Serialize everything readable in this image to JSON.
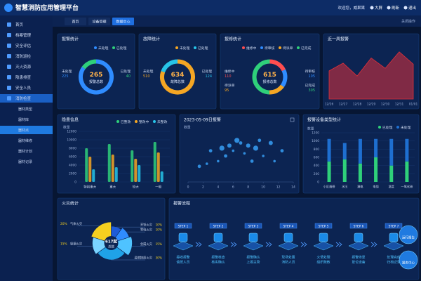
{
  "header": {
    "title": "智慧消防应用管理平台",
    "user": "欢迎您，威果果",
    "actions": [
      "大屏",
      "刷新",
      "退出"
    ]
  },
  "sidebar": {
    "items": [
      "首页",
      "档案管理",
      "安全评估",
      "消防巡检",
      "灭火资源",
      "隐患排查",
      "安全人员",
      "消防检查"
    ],
    "open_item": 7,
    "subitems": [
      "器材类型",
      "器材库",
      "器材点",
      "器材维修",
      "器材计划",
      "器材记录"
    ],
    "active_subitem": 2
  },
  "tabs": {
    "items": [
      "首页",
      "设备管理",
      "数据中心"
    ],
    "active": 2,
    "action": "关闭操作"
  },
  "panels": {
    "alarm": {
      "type": "ring",
      "title": "报警统计",
      "total": 265,
      "total_label": "报警总数",
      "series": [
        {
          "name": "未处理",
          "color": "#2f8cff",
          "value": 225
        },
        {
          "name": "已处理",
          "color": "#2fd07a",
          "value": 40
        }
      ]
    },
    "fault": {
      "type": "ring",
      "title": "故障统计",
      "total": 634,
      "total_label": "故障总数",
      "series": [
        {
          "name": "未处理",
          "color": "#f5a623",
          "value": 510
        },
        {
          "name": "已处理",
          "color": "#27c4e8",
          "value": 124
        }
      ]
    },
    "repair": {
      "type": "ring",
      "title": "报修统计",
      "total": 615,
      "total_label": "报修总数",
      "series": [
        {
          "name": "维修中",
          "color": "#ff4d4f",
          "value": 110
        },
        {
          "name": "待审核",
          "color": "#2f8cff",
          "value": 105
        },
        {
          "name": "待派单",
          "color": "#f5a623",
          "value": 95
        },
        {
          "name": "已完成",
          "color": "#2fd07a",
          "value": 305
        }
      ]
    },
    "weekly": {
      "type": "area",
      "title": "近一周报警",
      "color": "#e0303a",
      "categories": [
        "12/26",
        "12/27",
        "12/28",
        "12/29",
        "12/30",
        "12/31",
        "01/01"
      ],
      "values": [
        55,
        70,
        45,
        80,
        60,
        92,
        68
      ],
      "ylim": [
        0,
        100
      ]
    },
    "hazard": {
      "type": "grouped-bar",
      "title": "隐患信息",
      "y_label": "数量",
      "categories": [
        "特别重大",
        "重大",
        "较大",
        "一般"
      ],
      "series": [
        {
          "name": "已整改",
          "color": "#2fd07a",
          "values": [
            8000,
            9000,
            7500,
            9500
          ]
        },
        {
          "name": "整改中",
          "color": "#f5a623",
          "values": [
            6000,
            6500,
            5500,
            7000
          ]
        },
        {
          "name": "未整改",
          "color": "#27c4e8",
          "values": [
            3000,
            3500,
            4000,
            2500
          ]
        }
      ],
      "ylim": [
        0,
        12000
      ],
      "yticks": [
        0,
        2000,
        4000,
        6000,
        8000,
        10000,
        12000
      ]
    },
    "daily": {
      "type": "scatter",
      "title": "2023-05-09日报警",
      "y_label": "数量",
      "color": "#3aa6ff",
      "x": [
        1.5,
        2.5,
        3,
        4,
        4.5,
        5,
        5.5,
        6,
        6.5,
        7,
        7.5,
        8,
        8.5,
        9,
        9.5,
        10,
        11,
        11.5,
        12.5
      ],
      "values": [
        3,
        3.5,
        6,
        4,
        6.5,
        5,
        7,
        6,
        8,
        7.5,
        5.5,
        7,
        4,
        6.5,
        8,
        5,
        7.5,
        4,
        6
      ],
      "sizes": [
        2,
        1.5,
        2,
        1.5,
        3,
        2,
        2.5,
        1.5,
        3,
        2,
        1.5,
        2.5,
        2,
        3,
        2,
        1.5,
        2.5,
        1.5,
        2
      ],
      "xlim": [
        0,
        14
      ],
      "xticks": [
        0,
        2,
        4,
        6,
        8,
        10,
        12,
        14
      ],
      "ylim": [
        0,
        10
      ]
    },
    "device": {
      "type": "stacked-bar",
      "title": "报警设备类型统计",
      "y_label": "数量",
      "categories": [
        "小区烟感",
        "水压",
        "漏电",
        "电弧",
        "温度",
        "一氧化碳"
      ],
      "series": [
        {
          "name": "已处理",
          "color": "#2fd07a",
          "values": [
            500,
            550,
            450,
            600,
            400,
            500
          ]
        },
        {
          "name": "未处理",
          "color": "#1e6fd0",
          "values": [
            550,
            400,
            600,
            450,
            650,
            550
          ]
        }
      ],
      "ylim": [
        0,
        1200
      ],
      "yticks": [
        0,
        200,
        400,
        600,
        800,
        1000,
        1200
      ]
    },
    "fire": {
      "type": "pie",
      "title": "火灾统计",
      "total": "617起",
      "total_label": "总数",
      "categories": [
        "烹饪火灾",
        "零电火灾",
        "金属火灾",
        "易燃物质火灾",
        "吸烟火灾",
        "气体火灾"
      ],
      "values": [
        10,
        10,
        15,
        30,
        15,
        20
      ],
      "value_labels": [
        "10%",
        "10%",
        "15%",
        "30%",
        "15%",
        "20%"
      ],
      "colors": [
        "#1e5bd8",
        "#2f8cff",
        "#4fc3ff",
        "#1fa2e8",
        "#7ad3ff",
        "#f5d020"
      ]
    },
    "process": {
      "type": "process",
      "title": "报警流程",
      "steps": [
        {
          "step": "STEP 1",
          "lines": [
            "接收报警",
            "值班人员"
          ]
        },
        {
          "step": "STEP 2",
          "lines": [
            "报警核查",
            "核实确认"
          ]
        },
        {
          "step": "STEP 3",
          "lines": [
            "报警确认",
            "上报主管"
          ]
        },
        {
          "step": "STEP 4",
          "lines": [
            "现场处置",
            "消防人员"
          ]
        },
        {
          "step": "STEP 5",
          "lines": [
            "火情处理",
            "组织疏散"
          ]
        },
        {
          "step": "STEP 6",
          "lines": [
            "报警恢复",
            "复位设备"
          ]
        },
        {
          "step": "STEP 7",
          "lines": [
            "处理完成",
            "归档记录"
          ]
        }
      ],
      "buttons": [
        "运行报告",
        "报表中心"
      ]
    }
  }
}
